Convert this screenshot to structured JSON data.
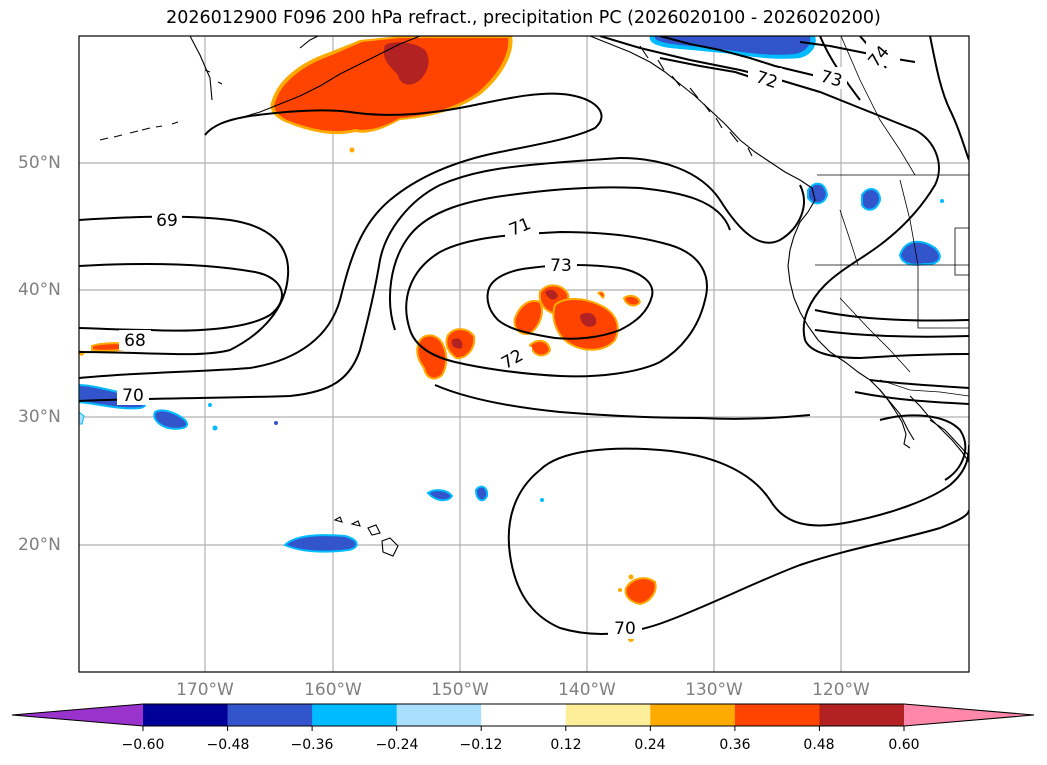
{
  "title": "2026012900 F096 200 hPa refract., precipitation PC (2026020100 - 2026020200)",
  "map": {
    "lat_labels": [
      "50°N",
      "40°N",
      "30°N",
      "20°N"
    ],
    "lon_labels": [
      "170°W",
      "160°W",
      "150°W",
      "140°W",
      "130°W",
      "120°W"
    ],
    "contour_labels": [
      "69",
      "68",
      "70",
      "71",
      "73",
      "72",
      "72",
      "73",
      "74",
      "70"
    ],
    "contour_line_color": "#000000",
    "grid": true
  },
  "colorbar": {
    "colors": [
      "#9933cc",
      "#000099",
      "#3355cc",
      "#00bbff",
      "#aae0ff",
      "#ffffff",
      "#ffee99",
      "#ffaa00",
      "#ff4400",
      "#b22222",
      "#ff88aa"
    ],
    "tick_labels": [
      "−0.60",
      "−0.48",
      "−0.36",
      "−0.24",
      "−0.12",
      "0.12",
      "0.24",
      "0.36",
      "0.48",
      "0.60"
    ],
    "extend": "both"
  }
}
